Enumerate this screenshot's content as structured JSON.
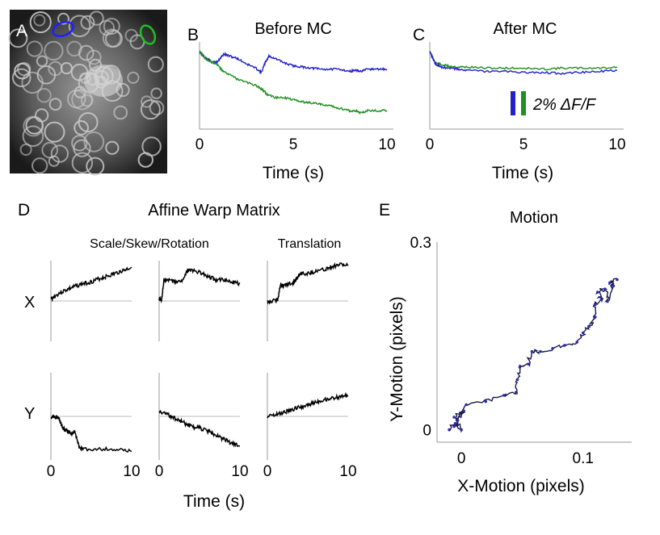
{
  "panel_labels": {
    "a": "A",
    "b": "B",
    "c": "C",
    "d": "D",
    "e": "E"
  },
  "colors": {
    "blue": "#1f1fcc",
    "green": "#1f8f1f",
    "trace": "#000000",
    "motion": "#1a1a4a",
    "motion_marker": "#2b2bb0"
  },
  "chart_data": [
    {
      "id": "B",
      "type": "line",
      "title": "Before MC",
      "xlabel": "Time (s)",
      "ylabel": "",
      "xlim": [
        0,
        10
      ],
      "xticks": [
        "0",
        "5",
        "10"
      ],
      "series": [
        {
          "color": "#1f1fcc",
          "x": [
            0,
            0.3,
            0.6,
            0.9,
            1.1,
            1.3,
            1.6,
            2.0,
            2.5,
            3.0,
            3.3,
            3.5,
            3.7,
            4.0,
            4.5,
            5,
            5.5,
            6,
            6.5,
            7,
            7.5,
            8,
            8.3,
            8.6,
            9,
            9.5,
            10
          ],
          "y": [
            96.6,
            96.1,
            95.7,
            95.6,
            96.0,
            96.4,
            96.2,
            96.0,
            95.5,
            95.1,
            94.7,
            95.6,
            96.2,
            96.0,
            95.6,
            95.3,
            95.2,
            95.1,
            95.0,
            95.0,
            95.0,
            94.8,
            94.9,
            94.8,
            95.0,
            95.0,
            95.0
          ]
        },
        {
          "color": "#1f8f1f",
          "x": [
            0,
            0.3,
            0.6,
            0.9,
            1.2,
            1.6,
            2.0,
            2.5,
            3.0,
            3.3,
            3.6,
            4.0,
            4.5,
            5,
            5.5,
            6,
            6.5,
            7,
            7.5,
            8,
            8.3,
            8.6,
            9,
            9.5,
            10
          ],
          "y": [
            96.6,
            96.0,
            95.7,
            95.5,
            94.9,
            94.5,
            94.1,
            93.8,
            93.5,
            93.2,
            92.7,
            92.4,
            92.4,
            92.2,
            92.0,
            91.9,
            91.8,
            91.6,
            91.4,
            91.2,
            91.2,
            91.0,
            91.2,
            91.2,
            91.2
          ]
        }
      ]
    },
    {
      "id": "C",
      "type": "line",
      "title": "After MC",
      "xlabel": "Time (s)",
      "ylabel": "",
      "xlim": [
        0,
        10
      ],
      "xticks": [
        "0",
        "5",
        "10"
      ],
      "scale_bar_label": "2% ΔF/F",
      "series": [
        {
          "color": "#1f8f1f",
          "x": [
            0,
            0.3,
            0.6,
            1,
            1.5,
            2,
            3,
            4,
            5,
            6,
            7,
            8,
            9,
            10
          ],
          "y": [
            96.6,
            95.6,
            95.4,
            95.3,
            95.2,
            95.2,
            95.1,
            95.1,
            95.1,
            95.0,
            95.1,
            95.1,
            95.1,
            95.2
          ]
        },
        {
          "color": "#1f1fcc",
          "x": [
            0,
            0.3,
            0.6,
            1,
            1.5,
            2,
            3,
            4,
            5,
            6,
            7,
            8,
            9,
            10
          ],
          "y": [
            96.6,
            95.5,
            95.2,
            95.1,
            95.0,
            94.9,
            94.8,
            94.8,
            94.7,
            94.7,
            94.6,
            94.7,
            94.8,
            94.9
          ]
        }
      ]
    },
    {
      "id": "D",
      "type": "line",
      "title": "Affine Warp Matrix",
      "subtitle_left": "Scale/Skew/Rotation",
      "subtitle_right": "Translation",
      "row_labels": [
        "X",
        "Y"
      ],
      "xlabel": "Time (s)",
      "xlim": [
        0,
        10
      ],
      "xticks": [
        "0",
        "10"
      ],
      "series": [
        {
          "row": "X",
          "col": 1,
          "x": [
            0,
            1,
            2,
            3,
            4,
            5,
            6,
            7,
            8,
            9,
            10
          ],
          "y": [
            0.05,
            0.2,
            0.3,
            0.38,
            0.45,
            0.5,
            0.58,
            0.65,
            0.72,
            0.8,
            0.88
          ]
        },
        {
          "row": "X",
          "col": 2,
          "x": [
            0,
            0.3,
            0.6,
            1,
            2,
            3,
            3.5,
            4,
            5,
            6,
            7,
            8,
            9,
            10
          ],
          "y": [
            0.05,
            0.04,
            0.55,
            0.55,
            0.5,
            0.55,
            0.8,
            0.8,
            0.75,
            0.65,
            0.55,
            0.55,
            0.5,
            0.45
          ]
        },
        {
          "row": "X",
          "col": 3,
          "x": [
            0,
            1,
            1.3,
            1.6,
            2,
            3,
            3.5,
            4,
            5,
            6,
            7,
            8,
            9,
            10
          ],
          "y": [
            0.0,
            0.0,
            0.05,
            0.4,
            0.4,
            0.45,
            0.55,
            0.72,
            0.72,
            0.78,
            0.82,
            0.9,
            0.96,
            0.92
          ]
        },
        {
          "row": "Y",
          "col": 1,
          "x": [
            0,
            0.5,
            1,
            1.5,
            2,
            2.5,
            3,
            3.5,
            4,
            6,
            8,
            10
          ],
          "y": [
            0.0,
            0.0,
            -0.05,
            -0.3,
            -0.35,
            -0.4,
            -0.4,
            -0.75,
            -0.8,
            -0.78,
            -0.8,
            -0.85
          ]
        },
        {
          "row": "Y",
          "col": 2,
          "x": [
            0,
            1,
            2,
            3,
            4,
            5,
            6,
            7,
            8,
            9,
            10
          ],
          "y": [
            0.12,
            0.05,
            -0.05,
            -0.15,
            -0.25,
            -0.28,
            -0.35,
            -0.45,
            -0.55,
            -0.65,
            -0.72
          ]
        },
        {
          "row": "Y",
          "col": 3,
          "x": [
            0,
            1,
            2,
            3,
            4,
            5,
            6,
            7,
            8,
            9,
            10
          ],
          "y": [
            0.0,
            0.05,
            0.1,
            0.16,
            0.22,
            0.28,
            0.34,
            0.39,
            0.43,
            0.47,
            0.5
          ]
        }
      ]
    },
    {
      "id": "E",
      "type": "line",
      "title": "Motion",
      "xlabel": "X-Motion (pixels)",
      "ylabel": "Y-Motion (pixels)",
      "xlim": [
        -0.02,
        0.14
      ],
      "ylim": [
        -0.02,
        0.3
      ],
      "xticks": [
        "0",
        "0.1"
      ],
      "yticks": [
        "0",
        "0.3"
      ],
      "x": [
        -0.01,
        -0.005,
        0,
        -0.006,
        0.002,
        -0.003,
        -0.006,
        0.004,
        0.02,
        0.035,
        0.045,
        0.046,
        0.048,
        0.055,
        0.058,
        0.065,
        0.075,
        0.085,
        0.095,
        0.1,
        0.105,
        0.11,
        0.11,
        0.115,
        0.112,
        0.118,
        0.12,
        0.125,
        0.122,
        0.128
      ],
      "y": [
        0.0,
        0.01,
        0.0,
        0.02,
        0.03,
        0.015,
        0.005,
        0.04,
        0.045,
        0.055,
        0.06,
        0.08,
        0.1,
        0.105,
        0.125,
        0.125,
        0.13,
        0.135,
        0.14,
        0.155,
        0.165,
        0.18,
        0.2,
        0.21,
        0.22,
        0.225,
        0.205,
        0.23,
        0.235,
        0.24
      ]
    }
  ]
}
